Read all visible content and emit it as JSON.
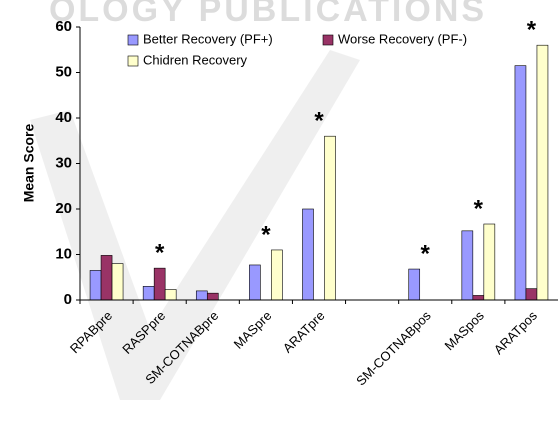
{
  "chart_data": {
    "type": "bar",
    "watermark": "OLOGY PUBLICATIONS",
    "ylabel": "Mean Score",
    "categories": [
      "RPABpre",
      "RASPpre",
      "SM-COTNABpre",
      "MASpre",
      "ARATpre",
      null,
      "SM-COTNABpos",
      "MASpos",
      "ARATpos"
    ],
    "series": [
      {
        "name": "Better Recovery (PF+)",
        "color": "#9999ff",
        "values": [
          6.5,
          3,
          2,
          7.7,
          20,
          null,
          6.8,
          15.2,
          51.5
        ]
      },
      {
        "name": "Worse Recovery (PF-)",
        "color": "#993366",
        "values": [
          9.8,
          7,
          1.5,
          null,
          null,
          null,
          null,
          1,
          2.5
        ]
      },
      {
        "name": "Chidren Recovery",
        "color": "#ffffcc",
        "values": [
          8,
          2.3,
          null,
          11,
          36,
          null,
          null,
          16.7,
          56
        ]
      }
    ],
    "annotations": [
      null,
      "*",
      null,
      "*",
      "*",
      null,
      "*",
      "*",
      "*"
    ],
    "ylim": [
      0,
      60
    ],
    "yticks": [
      0,
      10,
      20,
      30,
      40,
      50,
      60
    ],
    "grid": false,
    "legend": "top"
  }
}
